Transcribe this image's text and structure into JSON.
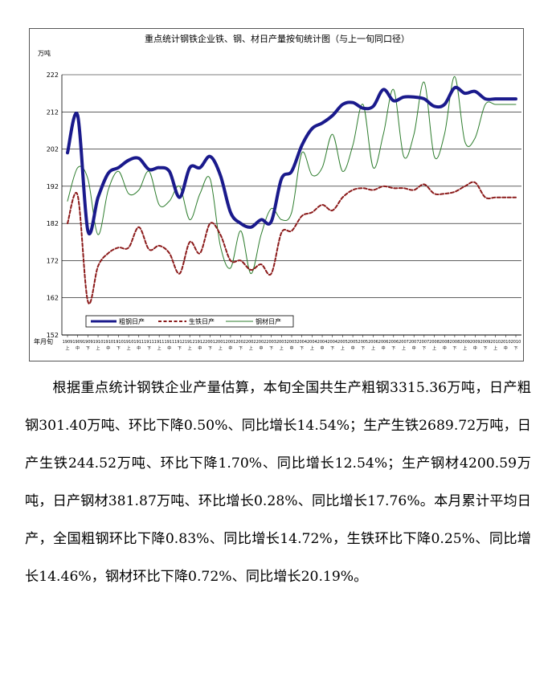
{
  "chart_data": {
    "type": "line",
    "title": "重点统计钢铁企业铁、钢、材日产量按旬统计图（与上一旬同口径）",
    "ylabel": "万吨",
    "xlabel": "年月旬",
    "ylim": [
      152,
      222
    ],
    "yticks": [
      152,
      162,
      172,
      182,
      192,
      202,
      212,
      222
    ],
    "grid": true,
    "legend_position": "bottom-left",
    "x_tick_years": [
      "1909",
      "1909",
      "1909",
      "1910",
      "1910",
      "1910",
      "1910",
      "1911",
      "1911",
      "1911",
      "1911",
      "1912",
      "1912",
      "1912",
      "2001",
      "2001",
      "2001",
      "2002",
      "2002",
      "2002",
      "2003",
      "2003",
      "2003",
      "2004",
      "2004",
      "2004",
      "2004",
      "2005",
      "2005",
      "2005",
      "2006",
      "2006",
      "2006",
      "2007",
      "2007",
      "2007",
      "2008",
      "2008",
      "2008",
      "2009",
      "2009",
      "2009",
      "2010",
      "2010",
      "2010"
    ],
    "x_tick_xuns": [
      "上",
      "中",
      "下",
      "上",
      "中",
      "下",
      "上",
      "中",
      "下",
      "上",
      "中",
      "下",
      "上",
      "中",
      "下",
      "上",
      "中",
      "下",
      "上",
      "中",
      "下",
      "上",
      "中",
      "下",
      "上",
      "中",
      "下",
      "上",
      "中",
      "下",
      "上",
      "中",
      "下",
      "上",
      "中",
      "下",
      "上",
      "中",
      "下",
      "上",
      "中",
      "下",
      "上",
      "中",
      "下"
    ],
    "series": [
      {
        "name": "粗钢日产",
        "color": "#1a1a8c",
        "style": "solid-thick",
        "values": [
          201,
          211,
          180,
          189,
          195.5,
          197,
          199,
          199.5,
          196.5,
          197,
          196,
          189,
          197,
          197,
          200,
          195,
          185,
          182,
          181,
          183,
          182.5,
          194,
          196,
          203,
          207.5,
          209,
          211,
          214,
          214.5,
          213,
          213.5,
          218,
          215,
          216,
          216,
          215.5,
          213.5,
          214,
          218.5,
          217,
          217.5,
          215.5,
          215.5,
          215.5,
          215.5
        ]
      },
      {
        "name": "生铁日产",
        "color": "#8b1a1a",
        "style": "dashed",
        "values": [
          182,
          189.5,
          161,
          170.5,
          174,
          175.5,
          175.5,
          181,
          175,
          176,
          174,
          168.5,
          177,
          174,
          182,
          179,
          172,
          172,
          169.5,
          171,
          168.5,
          179.5,
          180,
          184,
          185,
          187,
          185.5,
          189,
          191,
          191.5,
          191,
          192,
          191.5,
          191.5,
          191,
          192.5,
          190,
          190,
          190.5,
          192,
          193,
          189,
          189,
          189,
          189
        ]
      },
      {
        "name": "钢材日产",
        "color": "#2e7d2e",
        "style": "solid-thin",
        "values": [
          188,
          197,
          194,
          179,
          191,
          196,
          190,
          191,
          196,
          187,
          188,
          192,
          183,
          190,
          194,
          176,
          170,
          180,
          168.5,
          179,
          186,
          183,
          185,
          201,
          195,
          197,
          206,
          196,
          203,
          214,
          197,
          206,
          218,
          200,
          206,
          220,
          200,
          206,
          221.5,
          204,
          205,
          214,
          214,
          214,
          214
        ]
      }
    ]
  },
  "paragraph": "根据重点统计钢铁企业产量估算，本旬全国共生产粗钢3315.36万吨，日产粗钢301.40万吨、环比下降0.50%、同比增长14.54%；生产生铁2689.72万吨，日产生铁244.52万吨、环比下降1.70%、同比增长12.54%；生产钢材4200.59万吨，日产钢材381.87万吨、环比增长0.28%、同比增长17.76%。本月累计平均日产，全国粗钢环比下降0.83%、同比增长14.72%，生铁环比下降0.25%、同比增长14.46%，钢材环比下降0.72%、同比增长20.19%。"
}
